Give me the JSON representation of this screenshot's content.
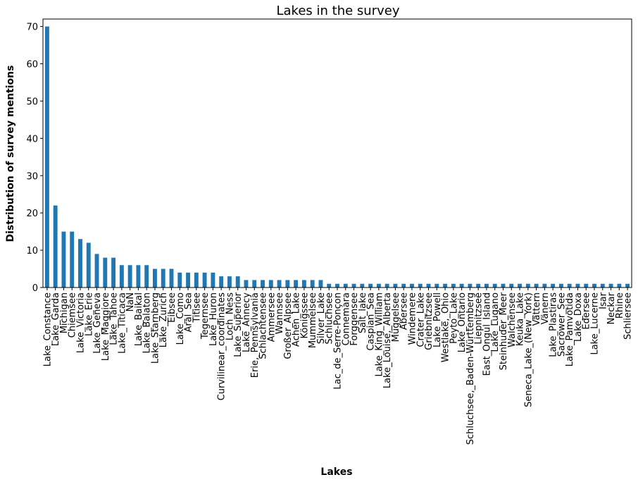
{
  "chart_data": {
    "type": "bar",
    "title": "Lakes in the survey",
    "xlabel": "Lakes",
    "ylabel": "Distribution of survey mentions",
    "ylim": [
      0,
      72
    ],
    "yticks": [
      0,
      10,
      20,
      30,
      40,
      50,
      60,
      70
    ],
    "grid": false,
    "bar_color": "#1f77b4",
    "categories": [
      "Lake_Constance",
      "Lake_Garda",
      "Michigan",
      "Chiemsee",
      "Lake_Victoria",
      "Lake_Erie",
      "Lake_Geneva",
      "Lake_Maggiore",
      "Lake_Tahoe",
      "Lake_Titicaca",
      "NaN",
      "Lake_Baikal",
      "Lake_Balaton",
      "Lake_Starnberg",
      "Lake_Zurich",
      "Eibsee",
      "Lake_Como",
      "Aral_Sea",
      "Titisee",
      "Tegernsee",
      "Lake_Huron",
      "Curvilinear_coordinates",
      "Loch_Ness",
      "Lake_Superior",
      "Lake_Annecy",
      "Erie,_Pennsylvania",
      "Schlachtensee",
      "Ammersee",
      "Wannsee",
      "Großer_Alpsee",
      "Achen_Lake",
      "Königssee",
      "Mummelsee",
      "Silver_Lake",
      "Schluchsee",
      "Lac_de_Serre-Ponçon",
      "Connemara",
      "Forggensee",
      "Salt_lake",
      "Caspian_Sea",
      "Lake_King_William",
      "Lake_Louise,_Alberta",
      "Müggelsee",
      "Abersee",
      "Windemere",
      "Crater_Lake",
      "Griebnitzsee",
      "Lake_Powell",
      "Westlake,_Ohio",
      "Peyto_Lake",
      "Lake_Ontario",
      "Schluchsee,_Baden-Württemberg",
      "Liepnitzsee",
      "East_Ongul_Island",
      "Lake_Lugano",
      "Steinhuder_Meer",
      "Walchensee",
      "Keuka_Lake",
      "Seneca_Lake_(New_York)",
      "Vättern",
      "Vänern",
      "Lake_Plastiras",
      "Sacrower_See",
      "Lake_Pamvotida",
      "Lake_Doxa",
      "Edersee",
      "Lake_Lucerne",
      "Isar",
      "Neckar",
      "Rhine",
      "Schliersee"
    ],
    "values": [
      70,
      22,
      15,
      15,
      13,
      12,
      9,
      8,
      8,
      6,
      6,
      6,
      6,
      5,
      5,
      5,
      4,
      4,
      4,
      4,
      4,
      3,
      3,
      3,
      2,
      2,
      2,
      2,
      2,
      2,
      2,
      2,
      2,
      2,
      1,
      1,
      1,
      1,
      1,
      1,
      1,
      1,
      1,
      1,
      1,
      1,
      1,
      1,
      1,
      1,
      1,
      1,
      1,
      1,
      1,
      1,
      1,
      1,
      1,
      1,
      1,
      1,
      1,
      1,
      1,
      1,
      1,
      1,
      1,
      1,
      1
    ]
  }
}
